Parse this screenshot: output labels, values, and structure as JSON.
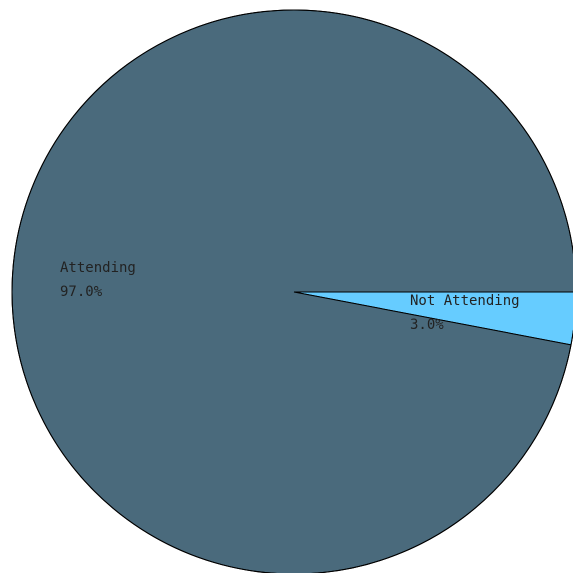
{
  "chart_data": {
    "type": "pie",
    "slices": [
      {
        "label": "Attending",
        "percent_label": "97.0%",
        "value": 97.0,
        "color": "#4a6a7c"
      },
      {
        "label": "Not Attending",
        "percent_label": "3.0%",
        "value": 3.0,
        "color": "#66ccff"
      }
    ],
    "start_position": "3 o'clock",
    "direction": "clockwise",
    "outline_color": "#000000"
  }
}
